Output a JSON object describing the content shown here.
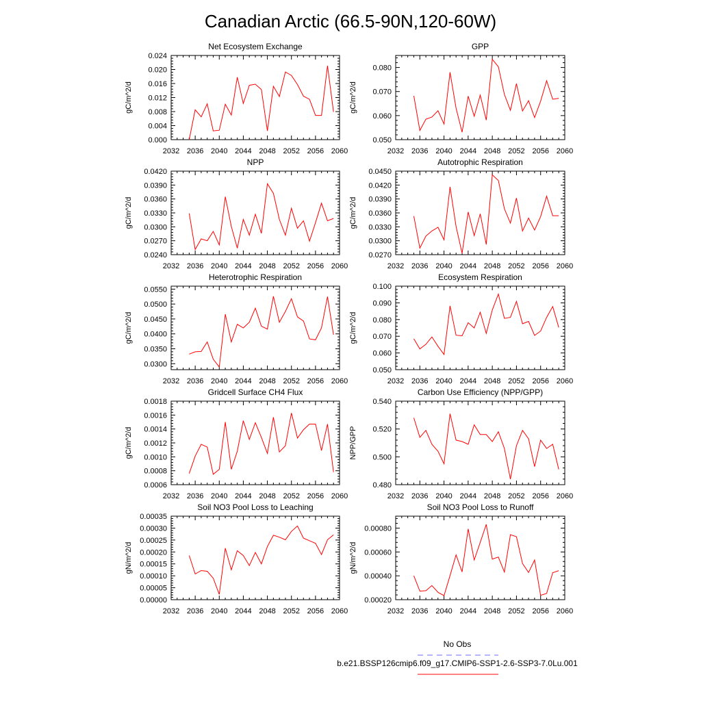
{
  "figure": {
    "title": "Canadian Arctic (66.5-90N,120-60W)"
  },
  "colors": {
    "model": "#ff0000",
    "obs": "#6a6aff"
  },
  "legend": {
    "obs_label": "No Obs",
    "model_label": "b.e21.BSSP126cmip6.f09_g17.CMIP6-SSP1-2.6-SSP3-7.0Lu.001"
  },
  "chart_data": [
    {
      "type": "line",
      "title": "Net Ecosystem Exchange",
      "ylabel": "gC/m^2/d",
      "xlim": [
        2032,
        2060
      ],
      "x_ticks": [
        "2032",
        "2036",
        "2040",
        "2044",
        "2048",
        "2052",
        "2056",
        "2060"
      ],
      "ylim": [
        0.0,
        0.024
      ],
      "y_ticks": [
        "0.000",
        "0.004",
        "0.008",
        "0.012",
        "0.016",
        "0.020",
        "0.024"
      ],
      "x": [
        2035,
        2036,
        2037,
        2038,
        2039,
        2040,
        2041,
        2042,
        2043,
        2044,
        2045,
        2046,
        2047,
        2048,
        2049,
        2050,
        2051,
        2052,
        2053,
        2054,
        2055,
        2056,
        2057,
        2058,
        2059
      ],
      "values": [
        0.0,
        0.0085,
        0.0065,
        0.0102,
        0.0025,
        0.0027,
        0.0101,
        0.007,
        0.0178,
        0.0103,
        0.0155,
        0.0158,
        0.0143,
        0.0025,
        0.0152,
        0.0123,
        0.0193,
        0.0183,
        0.0157,
        0.0124,
        0.0115,
        0.0069,
        0.0069,
        0.0211,
        0.0079
      ]
    },
    {
      "type": "line",
      "title": "GPP",
      "ylabel": "gC/m^2/d",
      "xlim": [
        2032,
        2060
      ],
      "x_ticks": [
        "2032",
        "2036",
        "2040",
        "2044",
        "2048",
        "2052",
        "2056",
        "2060"
      ],
      "ylim": [
        0.05,
        0.085
      ],
      "y_ticks": [
        "0.050",
        "0.060",
        "0.070",
        "0.080"
      ],
      "x": [
        2035,
        2036,
        2037,
        2038,
        2039,
        2040,
        2041,
        2042,
        2043,
        2044,
        2045,
        2046,
        2047,
        2048,
        2049,
        2050,
        2051,
        2052,
        2053,
        2054,
        2055,
        2056,
        2057,
        2058,
        2059
      ],
      "values": [
        0.0682,
        0.0538,
        0.0585,
        0.0594,
        0.062,
        0.0565,
        0.078,
        0.0631,
        0.0531,
        0.0681,
        0.0597,
        0.0685,
        0.0581,
        0.0834,
        0.0803,
        0.0688,
        0.0622,
        0.0733,
        0.0619,
        0.0662,
        0.0592,
        0.066,
        0.0745,
        0.0668,
        0.0672
      ]
    },
    {
      "type": "line",
      "title": "NPP",
      "ylabel": "gC/m^2/d",
      "xlim": [
        2032,
        2060
      ],
      "x_ticks": [
        "2032",
        "2036",
        "2040",
        "2044",
        "2048",
        "2052",
        "2056",
        "2060"
      ],
      "ylim": [
        0.024,
        0.042
      ],
      "y_ticks": [
        "0.0240",
        "0.0270",
        "0.0300",
        "0.0330",
        "0.0360",
        "0.0390",
        "0.0420"
      ],
      "x": [
        2035,
        2036,
        2037,
        2038,
        2039,
        2040,
        2041,
        2042,
        2043,
        2044,
        2045,
        2046,
        2047,
        2048,
        2049,
        2050,
        2051,
        2052,
        2053,
        2054,
        2055,
        2056,
        2057,
        2058,
        2059
      ],
      "values": [
        0.0329,
        0.0251,
        0.0274,
        0.027,
        0.029,
        0.0261,
        0.0365,
        0.0301,
        0.0254,
        0.0316,
        0.0282,
        0.0327,
        0.0286,
        0.0393,
        0.0372,
        0.0316,
        0.0282,
        0.034,
        0.0297,
        0.0313,
        0.0269,
        0.0309,
        0.0351,
        0.0313,
        0.0318
      ]
    },
    {
      "type": "line",
      "title": "Autotrophic Respiration",
      "ylabel": "gC/m^2/d",
      "xlim": [
        2032,
        2060
      ],
      "x_ticks": [
        "2032",
        "2036",
        "2040",
        "2044",
        "2048",
        "2052",
        "2056",
        "2060"
      ],
      "ylim": [
        0.027,
        0.045
      ],
      "y_ticks": [
        "0.0270",
        "0.0300",
        "0.0330",
        "0.0360",
        "0.0390",
        "0.0420",
        "0.0450"
      ],
      "x": [
        2035,
        2036,
        2037,
        2038,
        2039,
        2040,
        2041,
        2042,
        2043,
        2044,
        2045,
        2046,
        2047,
        2048,
        2049,
        2050,
        2051,
        2052,
        2053,
        2054,
        2055,
        2056,
        2057,
        2058,
        2059
      ],
      "values": [
        0.0353,
        0.0284,
        0.031,
        0.0321,
        0.0329,
        0.0302,
        0.0416,
        0.0331,
        0.0273,
        0.0362,
        0.0311,
        0.0358,
        0.0292,
        0.0442,
        0.043,
        0.0369,
        0.0338,
        0.0392,
        0.0321,
        0.0349,
        0.0323,
        0.0352,
        0.0396,
        0.0354,
        0.0354
      ]
    },
    {
      "type": "line",
      "title": "Heterotrophic Respiration",
      "ylabel": "gC/m^2/d",
      "xlim": [
        2032,
        2060
      ],
      "x_ticks": [
        "2032",
        "2036",
        "2040",
        "2044",
        "2048",
        "2052",
        "2056",
        "2060"
      ],
      "ylim": [
        0.028,
        0.056
      ],
      "y_ticks": [
        "0.0300",
        "0.0350",
        "0.0400",
        "0.0450",
        "0.0500",
        "0.0550"
      ],
      "x": [
        2035,
        2036,
        2037,
        2038,
        2039,
        2040,
        2041,
        2042,
        2043,
        2044,
        2045,
        2046,
        2047,
        2048,
        2049,
        2050,
        2051,
        2052,
        2053,
        2054,
        2055,
        2056,
        2057,
        2058,
        2059
      ],
      "values": [
        0.0332,
        0.034,
        0.0341,
        0.0373,
        0.0315,
        0.0289,
        0.0466,
        0.0373,
        0.0432,
        0.042,
        0.0439,
        0.0486,
        0.0426,
        0.0416,
        0.0526,
        0.0439,
        0.0475,
        0.0518,
        0.0457,
        0.0443,
        0.0383,
        0.038,
        0.042,
        0.0525,
        0.0397
      ]
    },
    {
      "type": "line",
      "title": "Ecosystem Respiration",
      "ylabel": "gC/m^2/d",
      "xlim": [
        2032,
        2060
      ],
      "x_ticks": [
        "2032",
        "2036",
        "2040",
        "2044",
        "2048",
        "2052",
        "2056",
        "2060"
      ],
      "ylim": [
        0.05,
        0.1
      ],
      "y_ticks": [
        "0.050",
        "0.060",
        "0.070",
        "0.080",
        "0.090",
        "0.100"
      ],
      "x": [
        2035,
        2036,
        2037,
        2038,
        2039,
        2040,
        2041,
        2042,
        2043,
        2044,
        2045,
        2046,
        2047,
        2048,
        2049,
        2050,
        2051,
        2052,
        2053,
        2054,
        2055,
        2056,
        2057,
        2058,
        2059
      ],
      "values": [
        0.0685,
        0.0624,
        0.0652,
        0.0696,
        0.064,
        0.0591,
        0.0882,
        0.0706,
        0.0703,
        0.0781,
        0.075,
        0.0844,
        0.0717,
        0.0857,
        0.0953,
        0.0807,
        0.0813,
        0.0909,
        0.0775,
        0.0789,
        0.0705,
        0.0731,
        0.0813,
        0.0878,
        0.0753
      ]
    },
    {
      "type": "line",
      "title": "Gridcell Surface CH4 Flux",
      "ylabel": "gC/m^2/d",
      "xlim": [
        2032,
        2060
      ],
      "x_ticks": [
        "2032",
        "2036",
        "2040",
        "2044",
        "2048",
        "2052",
        "2056",
        "2060"
      ],
      "ylim": [
        0.0006,
        0.0018
      ],
      "y_ticks": [
        "0.0006",
        "0.0008",
        "0.0010",
        "0.0012",
        "0.0014",
        "0.0016",
        "0.0018"
      ],
      "x": [
        2035,
        2036,
        2037,
        2038,
        2039,
        2040,
        2041,
        2042,
        2043,
        2044,
        2045,
        2046,
        2047,
        2048,
        2049,
        2050,
        2051,
        2052,
        2053,
        2054,
        2055,
        2056,
        2057,
        2058,
        2059
      ],
      "values": [
        0.00076,
        0.00101,
        0.00118,
        0.00114,
        0.00075,
        0.00082,
        0.0015,
        0.00082,
        0.00108,
        0.00152,
        0.00125,
        0.00149,
        0.00128,
        0.00105,
        0.00157,
        0.00107,
        0.00116,
        0.00163,
        0.00127,
        0.00139,
        0.00147,
        0.00147,
        0.00109,
        0.00147,
        0.00078
      ]
    },
    {
      "type": "line",
      "title": "Carbon Use Efficiency (NPP/GPP)",
      "ylabel": "NPP/GPP",
      "xlim": [
        2032,
        2060
      ],
      "x_ticks": [
        "2032",
        "2036",
        "2040",
        "2044",
        "2048",
        "2052",
        "2056",
        "2060"
      ],
      "ylim": [
        0.48,
        0.54
      ],
      "y_ticks": [
        "0.480",
        "0.500",
        "0.520",
        "0.540"
      ],
      "x": [
        2035,
        2036,
        2037,
        2038,
        2039,
        2040,
        2041,
        2042,
        2043,
        2044,
        2045,
        2046,
        2047,
        2048,
        2049,
        2050,
        2051,
        2052,
        2053,
        2054,
        2055,
        2056,
        2057,
        2058,
        2059
      ],
      "values": [
        0.528,
        0.514,
        0.519,
        0.509,
        0.504,
        0.495,
        0.531,
        0.512,
        0.511,
        0.509,
        0.523,
        0.516,
        0.516,
        0.511,
        0.518,
        0.506,
        0.484,
        0.508,
        0.519,
        0.513,
        0.493,
        0.512,
        0.506,
        0.509,
        0.491
      ]
    },
    {
      "type": "line",
      "title": "Soil NO3 Pool Loss to Leaching",
      "ylabel": "gN/m^2/d",
      "xlim": [
        2032,
        2060
      ],
      "x_ticks": [
        "2032",
        "2036",
        "2040",
        "2044",
        "2048",
        "2052",
        "2056",
        "2060"
      ],
      "ylim": [
        0.0,
        0.00035
      ],
      "y_ticks": [
        "0.00000",
        "0.00005",
        "0.00010",
        "0.00015",
        "0.00020",
        "0.00025",
        "0.00030",
        "0.00035"
      ],
      "x": [
        2035,
        2036,
        2037,
        2038,
        2039,
        2040,
        2041,
        2042,
        2043,
        2044,
        2045,
        2046,
        2047,
        2048,
        2049,
        2050,
        2051,
        2052,
        2053,
        2054,
        2055,
        2056,
        2057,
        2058,
        2059
      ],
      "values": [
        0.000185,
        0.000108,
        0.000122,
        0.000119,
        9e-05,
        2.2e-05,
        0.000216,
        0.000125,
        0.000205,
        0.000185,
        0.000143,
        0.000198,
        0.00015,
        0.000223,
        0.00027,
        0.000262,
        0.000251,
        0.000286,
        0.000309,
        0.000258,
        0.000247,
        0.000236,
        0.000189,
        0.000251,
        0.000272
      ]
    },
    {
      "type": "line",
      "title": "Soil NO3 Pool Loss to Runoff",
      "ylabel": "gN/m^2/d",
      "xlim": [
        2032,
        2060
      ],
      "x_ticks": [
        "2032",
        "2036",
        "2040",
        "2044",
        "2048",
        "2052",
        "2056",
        "2060"
      ],
      "ylim": [
        0.0002,
        0.0009
      ],
      "y_ticks": [
        "0.00020",
        "0.00040",
        "0.00060",
        "0.00080"
      ],
      "x": [
        2035,
        2036,
        2037,
        2038,
        2039,
        2040,
        2041,
        2042,
        2043,
        2044,
        2045,
        2046,
        2047,
        2048,
        2049,
        2050,
        2051,
        2052,
        2053,
        2054,
        2055,
        2056,
        2057,
        2058,
        2059
      ],
      "values": [
        0.0004,
        0.000272,
        0.000275,
        0.000318,
        0.000262,
        0.000234,
        0.000402,
        0.000576,
        0.000433,
        0.000793,
        0.000533,
        0.00068,
        0.000831,
        0.00054,
        0.000557,
        0.000431,
        0.000745,
        0.000728,
        0.000503,
        0.000428,
        0.000533,
        0.000237,
        0.000252,
        0.000426,
        0.000443
      ]
    }
  ]
}
